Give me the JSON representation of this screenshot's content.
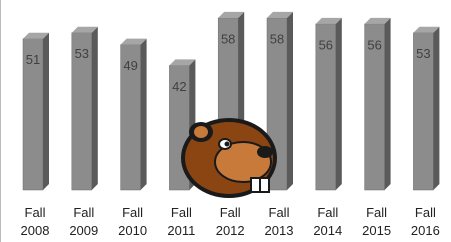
{
  "chart_data": {
    "type": "bar",
    "categories": [
      "Fall 2008",
      "Fall 2009",
      "Fall 2010",
      "Fall 2011",
      "Fall 2012",
      "Fall 2013",
      "Fall 2014",
      "Fall 2015",
      "Fall 2016"
    ],
    "values": [
      51,
      53,
      49,
      42,
      58,
      58,
      56,
      56,
      53
    ],
    "color": "#8c8c8c",
    "ylim": [
      0,
      60
    ]
  }
}
